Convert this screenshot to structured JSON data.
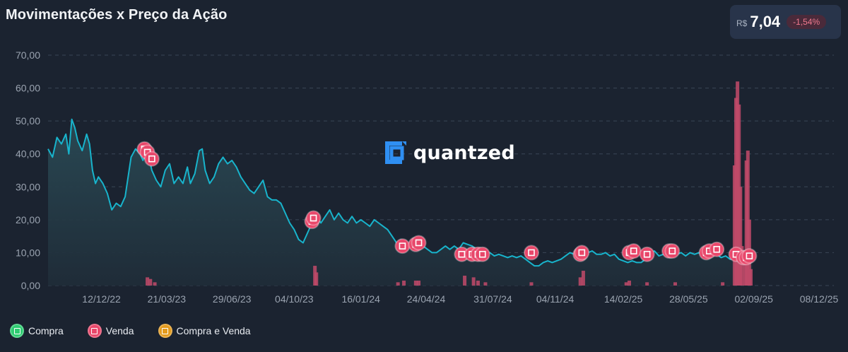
{
  "header": {
    "title": "Movimentações x Preço da Ação",
    "price_currency": "R$",
    "price_value": "7,04",
    "price_change": "-1,54%"
  },
  "watermark": {
    "text": "quantzed"
  },
  "legend": {
    "items": [
      {
        "label": "Compra",
        "color": "#2ecc71"
      },
      {
        "label": "Venda",
        "color": "#e8476a"
      },
      {
        "label": "Compra e Venda",
        "color": "#e39a1c"
      }
    ]
  },
  "colors": {
    "line": "#18b4cc",
    "area_top": "#2a4a55",
    "area_bottom": "#1f2c38",
    "marker_sell": "#e8476a",
    "bar": "#c24a6a",
    "grid": "#3a4656",
    "tick_text": "#9aa3b0"
  },
  "chart_data": {
    "type": "line",
    "title": "Movimentações x Preço da Ação",
    "xlabel": "",
    "ylabel": "",
    "ylim": [
      0,
      70
    ],
    "y_ticks": [
      "0,00",
      "10,00",
      "20,00",
      "30,00",
      "40,00",
      "50,00",
      "60,00",
      "70,00"
    ],
    "x_ticks": [
      "12/12/22",
      "21/03/23",
      "29/06/23",
      "04/10/23",
      "16/01/24",
      "24/04/24",
      "31/07/24",
      "04/11/24",
      "14/02/25",
      "28/05/25",
      "02/09/25",
      "08/12/25"
    ],
    "x_tick_positions": [
      0.072,
      0.16,
      0.248,
      0.332,
      0.422,
      0.51,
      0.6,
      0.684,
      0.776,
      0.864,
      0.952,
      1.04
    ],
    "grid": true,
    "price_series": {
      "name": "Preço",
      "points": [
        [
          0.0,
          41.5
        ],
        [
          0.006,
          39
        ],
        [
          0.012,
          45
        ],
        [
          0.018,
          43
        ],
        [
          0.024,
          46
        ],
        [
          0.028,
          40
        ],
        [
          0.032,
          50.5
        ],
        [
          0.036,
          48
        ],
        [
          0.04,
          44
        ],
        [
          0.046,
          41
        ],
        [
          0.052,
          46
        ],
        [
          0.056,
          43
        ],
        [
          0.06,
          35
        ],
        [
          0.064,
          31
        ],
        [
          0.068,
          33
        ],
        [
          0.074,
          31
        ],
        [
          0.08,
          28
        ],
        [
          0.086,
          23
        ],
        [
          0.092,
          25
        ],
        [
          0.098,
          24
        ],
        [
          0.104,
          27
        ],
        [
          0.108,
          33
        ],
        [
          0.112,
          39
        ],
        [
          0.118,
          41.5
        ],
        [
          0.124,
          40
        ],
        [
          0.128,
          38
        ],
        [
          0.134,
          41
        ],
        [
          0.14,
          35
        ],
        [
          0.146,
          32
        ],
        [
          0.152,
          30
        ],
        [
          0.158,
          35
        ],
        [
          0.164,
          37
        ],
        [
          0.17,
          31
        ],
        [
          0.176,
          33
        ],
        [
          0.182,
          31
        ],
        [
          0.188,
          36
        ],
        [
          0.192,
          31
        ],
        [
          0.198,
          34
        ],
        [
          0.204,
          41
        ],
        [
          0.208,
          41.5
        ],
        [
          0.212,
          35
        ],
        [
          0.218,
          31
        ],
        [
          0.224,
          33
        ],
        [
          0.23,
          37
        ],
        [
          0.236,
          39
        ],
        [
          0.242,
          37
        ],
        [
          0.248,
          38
        ],
        [
          0.254,
          36
        ],
        [
          0.26,
          33
        ],
        [
          0.266,
          31
        ],
        [
          0.272,
          29
        ],
        [
          0.278,
          28
        ],
        [
          0.284,
          30
        ],
        [
          0.29,
          32
        ],
        [
          0.296,
          27
        ],
        [
          0.302,
          26
        ],
        [
          0.308,
          26
        ],
        [
          0.314,
          25
        ],
        [
          0.32,
          22
        ],
        [
          0.326,
          19
        ],
        [
          0.332,
          17
        ],
        [
          0.338,
          14
        ],
        [
          0.344,
          13
        ],
        [
          0.35,
          16
        ],
        [
          0.356,
          19
        ],
        [
          0.362,
          21
        ],
        [
          0.368,
          19
        ],
        [
          0.374,
          21
        ],
        [
          0.38,
          23
        ],
        [
          0.386,
          20
        ],
        [
          0.392,
          22
        ],
        [
          0.398,
          20
        ],
        [
          0.404,
          19
        ],
        [
          0.41,
          21
        ],
        [
          0.416,
          19
        ],
        [
          0.422,
          20
        ],
        [
          0.428,
          19
        ],
        [
          0.434,
          18
        ],
        [
          0.44,
          20
        ],
        [
          0.446,
          19
        ],
        [
          0.452,
          18
        ],
        [
          0.458,
          17
        ],
        [
          0.464,
          15
        ],
        [
          0.47,
          13
        ],
        [
          0.476,
          14
        ],
        [
          0.482,
          13
        ],
        [
          0.488,
          12
        ],
        [
          0.494,
          14
        ],
        [
          0.5,
          13
        ],
        [
          0.506,
          12
        ],
        [
          0.512,
          11
        ],
        [
          0.518,
          10
        ],
        [
          0.524,
          10
        ],
        [
          0.53,
          11
        ],
        [
          0.536,
          12
        ],
        [
          0.542,
          11
        ],
        [
          0.548,
          12
        ],
        [
          0.554,
          11
        ],
        [
          0.56,
          13
        ],
        [
          0.566,
          12.5
        ],
        [
          0.572,
          12
        ],
        [
          0.578,
          11
        ],
        [
          0.584,
          10.5
        ],
        [
          0.59,
          10
        ],
        [
          0.596,
          10
        ],
        [
          0.602,
          9
        ],
        [
          0.608,
          9.5
        ],
        [
          0.614,
          9
        ],
        [
          0.62,
          8.5
        ],
        [
          0.626,
          9
        ],
        [
          0.632,
          8.5
        ],
        [
          0.638,
          9
        ],
        [
          0.644,
          8
        ],
        [
          0.65,
          7
        ],
        [
          0.656,
          6
        ],
        [
          0.662,
          6
        ],
        [
          0.668,
          7
        ],
        [
          0.674,
          7.5
        ],
        [
          0.68,
          7
        ],
        [
          0.686,
          7.5
        ],
        [
          0.692,
          8
        ],
        [
          0.698,
          9
        ],
        [
          0.704,
          10
        ],
        [
          0.71,
          9.5
        ],
        [
          0.716,
          9
        ],
        [
          0.722,
          9.5
        ],
        [
          0.728,
          10
        ],
        [
          0.734,
          10.5
        ],
        [
          0.74,
          9.5
        ],
        [
          0.746,
          9.5
        ],
        [
          0.752,
          10
        ],
        [
          0.758,
          9
        ],
        [
          0.764,
          9.5
        ],
        [
          0.77,
          8
        ],
        [
          0.776,
          7.5
        ],
        [
          0.782,
          7
        ],
        [
          0.788,
          7.5
        ],
        [
          0.794,
          7
        ],
        [
          0.8,
          7
        ],
        [
          0.806,
          8
        ],
        [
          0.812,
          10
        ],
        [
          0.818,
          10.5
        ],
        [
          0.824,
          9
        ],
        [
          0.83,
          9.5
        ],
        [
          0.836,
          9
        ],
        [
          0.842,
          10
        ],
        [
          0.848,
          9.5
        ],
        [
          0.854,
          10
        ],
        [
          0.86,
          9
        ],
        [
          0.866,
          10
        ],
        [
          0.872,
          9.5
        ],
        [
          0.878,
          10
        ],
        [
          0.884,
          9.5
        ],
        [
          0.89,
          10.5
        ],
        [
          0.896,
          9
        ],
        [
          0.902,
          9.5
        ],
        [
          0.908,
          8.5
        ],
        [
          0.914,
          9
        ],
        [
          0.92,
          8
        ],
        [
          0.926,
          8
        ],
        [
          0.932,
          8.5
        ],
        [
          0.938,
          8
        ],
        [
          0.944,
          7.5
        ],
        [
          0.95,
          7.04
        ]
      ]
    },
    "sell_markers": [
      [
        0.13,
        41.5
      ],
      [
        0.134,
        40.5
      ],
      [
        0.14,
        38.5
      ],
      [
        0.356,
        19.5
      ],
      [
        0.358,
        20.5
      ],
      [
        0.478,
        12
      ],
      [
        0.496,
        12.5
      ],
      [
        0.5,
        13
      ],
      [
        0.558,
        9.5
      ],
      [
        0.572,
        9.5
      ],
      [
        0.58,
        9.5
      ],
      [
        0.586,
        9.5
      ],
      [
        0.652,
        10
      ],
      [
        0.718,
        9.5
      ],
      [
        0.72,
        10
      ],
      [
        0.784,
        10
      ],
      [
        0.79,
        10.5
      ],
      [
        0.808,
        9.5
      ],
      [
        0.838,
        10.5
      ],
      [
        0.842,
        10.5
      ],
      [
        0.888,
        10
      ],
      [
        0.892,
        10.5
      ],
      [
        0.902,
        11
      ],
      [
        0.928,
        9.5
      ],
      [
        0.938,
        8.5
      ],
      [
        0.942,
        8.5
      ],
      [
        0.946,
        9
      ]
    ],
    "sell_volume_bars": [
      [
        0.134,
        2.5
      ],
      [
        0.138,
        2
      ],
      [
        0.144,
        1
      ],
      [
        0.36,
        6
      ],
      [
        0.362,
        4
      ],
      [
        0.472,
        1
      ],
      [
        0.48,
        1.5
      ],
      [
        0.496,
        1.5
      ],
      [
        0.5,
        1.5
      ],
      [
        0.562,
        3
      ],
      [
        0.574,
        2.5
      ],
      [
        0.58,
        1.5
      ],
      [
        0.59,
        1
      ],
      [
        0.652,
        1
      ],
      [
        0.718,
        2.5
      ],
      [
        0.722,
        4.5
      ],
      [
        0.78,
        1
      ],
      [
        0.784,
        1.5
      ],
      [
        0.808,
        1
      ],
      [
        0.846,
        1
      ],
      [
        0.91,
        1
      ],
      [
        0.926,
        36.5
      ],
      [
        0.928,
        57
      ],
      [
        0.93,
        62
      ],
      [
        0.932,
        55
      ],
      [
        0.934,
        30
      ],
      [
        0.936,
        12
      ],
      [
        0.94,
        8
      ],
      [
        0.942,
        38
      ],
      [
        0.944,
        41
      ],
      [
        0.946,
        20
      ],
      [
        0.948,
        5
      ]
    ]
  }
}
